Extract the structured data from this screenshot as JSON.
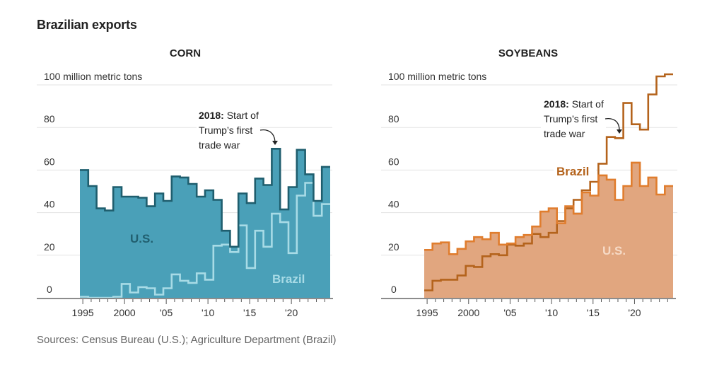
{
  "title": "Brazilian exports",
  "source": "Sources: Census Bureau (U.S.); Agriculture Department (Brazil)",
  "colors": {
    "corn_fill": "#4aa0b8",
    "corn_us_line": "#1f5e6e",
    "corn_brazil_line": "#a8dbe6",
    "soy_fill": "#e1a67f",
    "soy_us_line": "#e07d2e",
    "soy_brazil_line": "#b4631c",
    "corn_us_label": "#215f6f",
    "corn_brazil_label": "#a8dbe6",
    "soy_us_label": "#f6dac6",
    "soy_brazil_label": "#b4631c"
  },
  "chart_data": [
    {
      "type": "area",
      "title": "CORN",
      "ylabel": "100 million metric tons",
      "ylim": [
        0,
        100
      ],
      "yticks": [
        0,
        20,
        40,
        60,
        80,
        100
      ],
      "ytick_labels": [
        "0",
        "20",
        "40",
        "60",
        "80",
        "100 million metric tons"
      ],
      "xticks": [
        1995,
        2000,
        2005,
        2010,
        2015,
        2020
      ],
      "xtick_labels": [
        "1995",
        "2000",
        "'05",
        "'10",
        "'15",
        "'20"
      ],
      "x": [
        1995,
        1996,
        1997,
        1998,
        1999,
        2000,
        2001,
        2002,
        2003,
        2004,
        2005,
        2006,
        2007,
        2008,
        2009,
        2010,
        2011,
        2012,
        2013,
        2014,
        2015,
        2016,
        2017,
        2018,
        2019,
        2020,
        2021,
        2022,
        2023,
        2024
      ],
      "series": [
        {
          "name": "U.S.",
          "style": "filled-step",
          "values": [
            60,
            52.5,
            42,
            41,
            52,
            47.5,
            47.5,
            47,
            43,
            49,
            45.5,
            57,
            56.5,
            53.5,
            47.5,
            50.5,
            46,
            31.5,
            24,
            49,
            44.5,
            56,
            53,
            70,
            41.5,
            52,
            69.5,
            58,
            45.5,
            61.5
          ]
        },
        {
          "name": "Brazil",
          "style": "step-line",
          "values": [
            0.5,
            0,
            0,
            0,
            0.5,
            6.5,
            2.5,
            5,
            4.5,
            1.5,
            4.5,
            11,
            8,
            7,
            11.5,
            8.5,
            24.5,
            25,
            21.5,
            34,
            14,
            31.5,
            24,
            39.5,
            35.5,
            21,
            48,
            54,
            38.5,
            44
          ]
        }
      ],
      "annotation": {
        "year": 2018,
        "bold": "2018:",
        "lines": [
          "Start of",
          "Trump’s first",
          "trade war"
        ]
      },
      "labels": {
        "us": "U.S.",
        "brazil": "Brazil"
      }
    },
    {
      "type": "area",
      "title": "SOYBEANS",
      "ylabel": "100 million metric tons",
      "ylim": [
        0,
        100
      ],
      "yticks": [
        0,
        20,
        40,
        60,
        80,
        100
      ],
      "ytick_labels": [
        "0",
        "20",
        "40",
        "60",
        "80",
        "100 million metric tons"
      ],
      "xticks": [
        1995,
        2000,
        2005,
        2010,
        2015,
        2020
      ],
      "xtick_labels": [
        "1995",
        "2000",
        "'05",
        "'10",
        "'15",
        "'20"
      ],
      "x": [
        1995,
        1996,
        1997,
        1998,
        1999,
        2000,
        2001,
        2002,
        2003,
        2004,
        2005,
        2006,
        2007,
        2008,
        2009,
        2010,
        2011,
        2012,
        2013,
        2014,
        2015,
        2016,
        2017,
        2018,
        2019,
        2020,
        2021,
        2022,
        2023,
        2024
      ],
      "series": [
        {
          "name": "U.S.",
          "style": "filled-step",
          "values": [
            22.5,
            25.5,
            26,
            20.5,
            23,
            26.5,
            28.5,
            27.5,
            30.5,
            25,
            25.5,
            28.5,
            29.5,
            33.5,
            40.5,
            42,
            35,
            43,
            39.5,
            49.5,
            48,
            57.5,
            55.5,
            46,
            52.5,
            63.5,
            52.5,
            56.5,
            48.5,
            52.5
          ]
        },
        {
          "name": "Brazil",
          "style": "step-line",
          "values": [
            3.5,
            8,
            8.5,
            8.5,
            10.5,
            15,
            14.5,
            19.5,
            20.5,
            20,
            25,
            24.5,
            25.5,
            30,
            28.5,
            30.5,
            36,
            42,
            46,
            50.5,
            54.5,
            63,
            75.5,
            75,
            91.5,
            81.5,
            79,
            95.5,
            104,
            105
          ]
        }
      ],
      "annotation": {
        "year": 2018,
        "bold": "2018:",
        "lines": [
          "Start of",
          "Trump’s first",
          "trade war"
        ]
      },
      "labels": {
        "us": "U.S.",
        "brazil": "Brazil"
      }
    }
  ]
}
